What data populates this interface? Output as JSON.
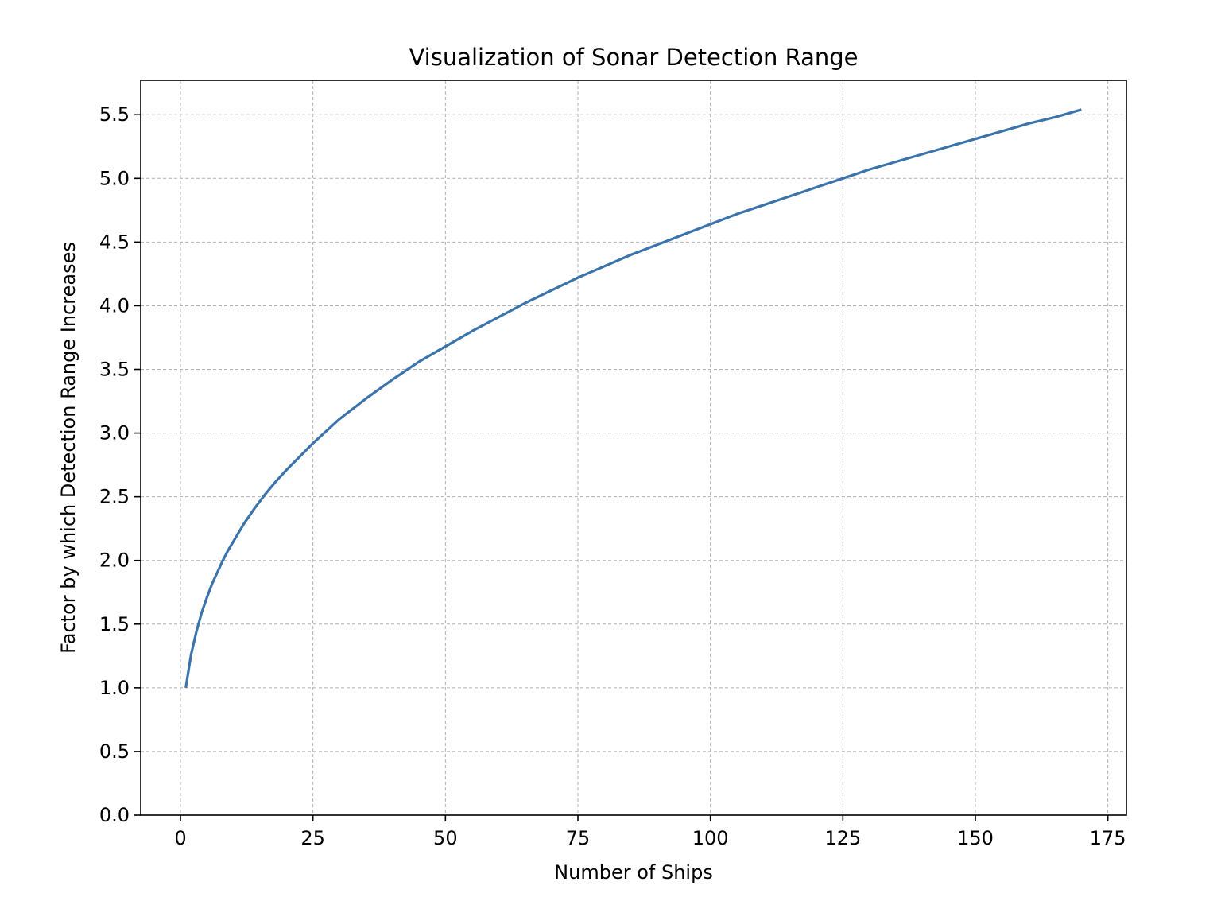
{
  "chart_data": {
    "type": "line",
    "title": "Visualization of Sonar Detection Range",
    "xlabel": "Number of Ships",
    "ylabel": "Factor by which Detection Range Increases",
    "xlim": [
      -7.5,
      178.5
    ],
    "ylim": [
      0.0,
      5.77
    ],
    "x_ticks": [
      0,
      25,
      50,
      75,
      100,
      125,
      150,
      175
    ],
    "x_tick_labels": [
      "0",
      "25",
      "50",
      "75",
      "100",
      "125",
      "150",
      "175"
    ],
    "y_ticks": [
      0.0,
      0.5,
      1.0,
      1.5,
      2.0,
      2.5,
      3.0,
      3.5,
      4.0,
      4.5,
      5.0,
      5.5
    ],
    "y_tick_labels": [
      "0.0",
      "0.5",
      "1.0",
      "1.5",
      "2.0",
      "2.5",
      "3.0",
      "3.5",
      "4.0",
      "4.5",
      "5.0",
      "5.5"
    ],
    "grid": true,
    "series": [
      {
        "color": "#3b73ab",
        "x": [
          1,
          2,
          3,
          4,
          5,
          6,
          7,
          8,
          9,
          10,
          12,
          14,
          16,
          18,
          20,
          25,
          30,
          35,
          40,
          45,
          50,
          55,
          60,
          65,
          70,
          75,
          80,
          85,
          90,
          95,
          100,
          105,
          110,
          115,
          120,
          125,
          130,
          135,
          140,
          145,
          150,
          155,
          160,
          165,
          170
        ],
        "y": [
          1.0,
          1.26,
          1.44,
          1.59,
          1.71,
          1.82,
          1.91,
          2.0,
          2.08,
          2.15,
          2.29,
          2.41,
          2.52,
          2.62,
          2.71,
          2.92,
          3.11,
          3.27,
          3.42,
          3.56,
          3.68,
          3.8,
          3.91,
          4.02,
          4.12,
          4.22,
          4.31,
          4.4,
          4.48,
          4.56,
          4.64,
          4.72,
          4.79,
          4.86,
          4.93,
          5.0,
          5.07,
          5.13,
          5.19,
          5.25,
          5.31,
          5.37,
          5.43,
          5.48,
          5.54
        ]
      }
    ]
  }
}
